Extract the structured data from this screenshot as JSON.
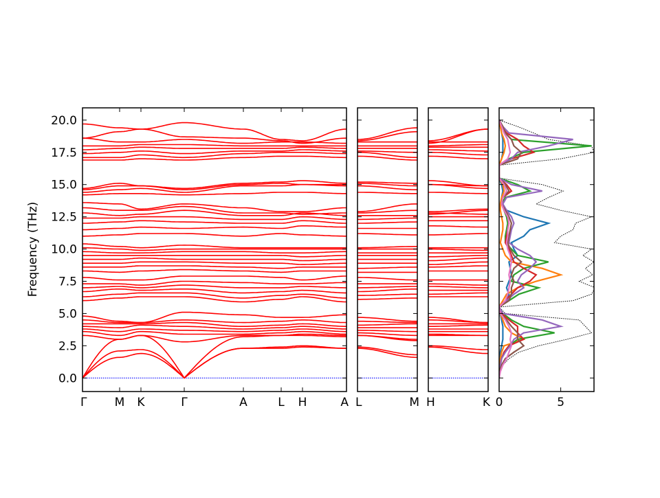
{
  "chart_data": {
    "type": "line",
    "title": "",
    "ylabel": "Frequency (THz)",
    "ylim": [
      -1.05,
      20.95
    ],
    "yticks": [
      "0.0",
      "2.5",
      "5.0",
      "7.5",
      "10.0",
      "12.5",
      "15.0",
      "17.5",
      "20.0"
    ],
    "ytick_values": [
      0,
      2.5,
      5,
      7.5,
      10,
      12.5,
      15,
      17.5,
      20
    ],
    "band_color": "#ff0000",
    "zero_line_color": "#0000ff",
    "kpoint_labels": [
      "Γ",
      "M",
      "K",
      "Γ",
      "A",
      "L",
      "H",
      "A",
      "L",
      "M",
      "H",
      "K"
    ],
    "panels": [
      {
        "nodes": [
          0,
          1,
          2,
          3,
          4,
          5,
          6,
          7
        ],
        "distances": [
          0,
          0.54,
          0.85,
          1.48,
          2.34,
          2.89,
          3.2,
          3.84
        ]
      },
      {
        "nodes": [
          8,
          9
        ],
        "distances": [
          0,
          1
        ]
      },
      {
        "nodes": [
          10,
          11
        ],
        "distances": [
          0,
          1
        ]
      }
    ],
    "bands": [
      [
        0,
        1.6,
        1.9,
        0,
        2.3,
        2.3,
        2.4,
        2.3,
        2.3,
        1.6,
        2.4,
        1.9
      ],
      [
        0,
        2.1,
        2.2,
        0,
        2.3,
        2.4,
        2.5,
        2.3,
        2.4,
        1.8,
        2.5,
        2.2
      ],
      [
        0,
        3.0,
        3.3,
        0,
        3.2,
        3.3,
        3.3,
        3.2,
        3.3,
        2.9,
        3.3,
        3.3
      ],
      [
        3.3,
        3.0,
        3.3,
        2.8,
        3.3,
        3.3,
        3.4,
        3.3,
        3.3,
        3.0,
        3.4,
        3.3
      ],
      [
        3.6,
        3.3,
        3.6,
        3.4,
        3.4,
        3.5,
        3.6,
        3.4,
        3.5,
        3.3,
        3.6,
        3.6
      ],
      [
        3.8,
        3.6,
        3.8,
        3.7,
        3.6,
        3.7,
        3.8,
        3.6,
        3.7,
        3.6,
        3.8,
        3.8
      ],
      [
        4.0,
        3.9,
        4.1,
        4.0,
        3.8,
        3.9,
        4.0,
        3.8,
        3.9,
        3.9,
        4.0,
        4.1
      ],
      [
        4.2,
        4.2,
        4.2,
        4.3,
        4.0,
        4.1,
        4.2,
        4.0,
        4.1,
        4.2,
        4.2,
        4.2
      ],
      [
        4.5,
        4.3,
        4.3,
        4.5,
        4.3,
        4.4,
        4.5,
        4.3,
        4.4,
        4.3,
        4.5,
        4.3
      ],
      [
        4.8,
        4.4,
        4.3,
        5.1,
        4.9,
        4.7,
        4.7,
        4.9,
        4.7,
        4.4,
        4.7,
        4.3
      ],
      [
        6.0,
        6.2,
        6.3,
        6.3,
        5.9,
        6.1,
        6.3,
        5.9,
        6.1,
        6.2,
        6.3,
        6.3
      ],
      [
        6.3,
        6.5,
        6.6,
        6.6,
        6.2,
        6.4,
        6.5,
        6.2,
        6.4,
        6.5,
        6.5,
        6.6
      ],
      [
        6.7,
        6.9,
        6.8,
        6.9,
        6.6,
        6.7,
        6.8,
        6.6,
        6.7,
        6.9,
        6.8,
        6.8
      ],
      [
        7.0,
        7.1,
        7.0,
        7.2,
        7.0,
        7.0,
        7.1,
        7.0,
        7.0,
        7.1,
        7.1,
        7.0
      ],
      [
        7.3,
        7.3,
        7.2,
        7.5,
        7.4,
        7.3,
        7.3,
        7.4,
        7.3,
        7.3,
        7.3,
        7.2
      ],
      [
        7.8,
        7.6,
        7.6,
        7.9,
        7.9,
        7.8,
        7.6,
        7.9,
        7.8,
        7.6,
        7.6,
        7.6
      ],
      [
        8.3,
        8.2,
        8.3,
        8.4,
        8.3,
        8.2,
        8.3,
        8.3,
        8.2,
        8.2,
        8.3,
        8.3
      ],
      [
        8.6,
        8.6,
        8.7,
        8.7,
        8.6,
        8.5,
        8.6,
        8.6,
        8.5,
        8.6,
        8.6,
        8.7
      ],
      [
        8.9,
        8.9,
        9.0,
        9.0,
        8.9,
        8.9,
        8.8,
        8.9,
        8.9,
        8.9,
        8.8,
        9.0
      ],
      [
        9.2,
        9.2,
        9.3,
        9.2,
        9.2,
        9.2,
        9.1,
        9.2,
        9.2,
        9.2,
        9.1,
        9.3
      ],
      [
        9.5,
        9.5,
        9.5,
        9.5,
        9.5,
        9.5,
        9.4,
        9.5,
        9.5,
        9.5,
        9.4,
        9.5
      ],
      [
        9.8,
        9.7,
        9.7,
        9.8,
        9.8,
        9.7,
        9.7,
        9.8,
        9.7,
        9.7,
        9.7,
        9.7
      ],
      [
        10.1,
        10.0,
        9.9,
        10.0,
        10.0,
        10.0,
        10.0,
        10.0,
        10.0,
        10.0,
        10.0,
        9.9
      ],
      [
        10.4,
        10.2,
        10.1,
        10.3,
        10.1,
        10.1,
        10.1,
        10.1,
        10.1,
        10.2,
        10.1,
        10.1
      ],
      [
        11.0,
        11.1,
        11.2,
        11.2,
        11.0,
        11.2,
        11.1,
        11.0,
        11.2,
        11.1,
        11.1,
        11.2
      ],
      [
        11.5,
        11.6,
        11.7,
        11.6,
        11.7,
        11.6,
        11.8,
        11.7,
        11.6,
        11.6,
        11.8,
        11.7
      ],
      [
        12.0,
        12.1,
        12.2,
        12.1,
        12.0,
        12.0,
        12.2,
        12.0,
        12.0,
        12.1,
        12.2,
        12.2
      ],
      [
        12.4,
        12.4,
        12.5,
        12.5,
        12.3,
        12.3,
        12.5,
        12.3,
        12.3,
        12.4,
        12.5,
        12.5
      ],
      [
        12.8,
        12.6,
        12.7,
        13.0,
        12.6,
        12.6,
        12.8,
        12.6,
        12.6,
        12.6,
        12.8,
        12.7
      ],
      [
        13.2,
        13.0,
        13.0,
        13.3,
        12.8,
        12.8,
        12.7,
        12.8,
        12.8,
        13.0,
        12.7,
        13.0
      ],
      [
        13.6,
        13.5,
        13.1,
        13.5,
        13.2,
        12.9,
        12.9,
        13.2,
        12.9,
        13.5,
        12.9,
        13.1
      ],
      [
        14.2,
        14.3,
        14.3,
        14.2,
        14.3,
        14.4,
        14.4,
        14.3,
        14.4,
        14.3,
        14.4,
        14.3
      ],
      [
        14.4,
        14.6,
        14.7,
        14.4,
        14.9,
        14.9,
        15.0,
        14.9,
        14.9,
        14.6,
        15.0,
        14.7
      ],
      [
        14.6,
        14.9,
        14.9,
        14.6,
        15.0,
        15.1,
        15.0,
        15.0,
        15.1,
        14.9,
        15.0,
        14.9
      ],
      [
        14.7,
        15.1,
        14.9,
        14.7,
        15.1,
        15.2,
        15.3,
        15.1,
        15.2,
        15.1,
        15.3,
        14.9
      ],
      [
        16.9,
        16.9,
        17.0,
        16.9,
        17.1,
        17.2,
        17.2,
        17.1,
        17.2,
        16.9,
        17.2,
        17.0
      ],
      [
        17.1,
        17.1,
        17.3,
        17.1,
        17.4,
        17.5,
        17.5,
        17.4,
        17.5,
        17.1,
        17.5,
        17.3
      ],
      [
        17.4,
        17.5,
        17.6,
        17.4,
        17.6,
        17.6,
        17.7,
        17.6,
        17.6,
        17.5,
        17.7,
        17.6
      ],
      [
        17.7,
        17.8,
        17.9,
        17.8,
        17.8,
        17.8,
        17.9,
        17.8,
        17.8,
        17.8,
        17.9,
        17.9
      ],
      [
        18.0,
        18.0,
        18.1,
        18.1,
        18.0,
        18.0,
        18.0,
        18.0,
        18.0,
        18.0,
        18.0,
        18.1
      ],
      [
        18.6,
        18.3,
        18.3,
        18.5,
        18.2,
        18.3,
        18.3,
        18.2,
        18.3,
        18.3,
        18.3,
        18.3
      ],
      [
        18.6,
        19.1,
        19.3,
        18.7,
        18.6,
        18.4,
        18.2,
        18.6,
        18.4,
        19.1,
        18.2,
        19.3
      ],
      [
        19.7,
        19.4,
        19.3,
        19.8,
        19.3,
        18.5,
        18.4,
        19.3,
        18.5,
        19.4,
        18.4,
        19.3
      ]
    ],
    "dos": {
      "xlim": [
        0,
        7.7
      ],
      "xticks": [
        "0",
        "5"
      ],
      "xtick_values": [
        0,
        5
      ],
      "freq_step": 0.5,
      "total": {
        "color": "#000000",
        "values": [
          0,
          0.1,
          0.3,
          0.8,
          1.6,
          3.2,
          5.5,
          7.5,
          7.0,
          6.5,
          0.5,
          0,
          6.0,
          7.5,
          7.8,
          6.5,
          7.6,
          7.0,
          7.7,
          6.8,
          7.5,
          4.5,
          5.0,
          6.0,
          6.2,
          7.5,
          5.0,
          3.0,
          4.0,
          5.2,
          3.5,
          0,
          0,
          0,
          5.0,
          7.7,
          7.5,
          4.0,
          2.8,
          1.5,
          0
        ]
      },
      "partials": [
        {
          "color": "#1f77b4",
          "values": [
            0,
            0,
            0,
            0.1,
            0.1,
            0.2,
            0.3,
            0.3,
            0.3,
            0.2,
            0.1,
            0,
            0.6,
            0.8,
            0.6,
            0.8,
            1.0,
            0.9,
            0.8,
            1.5,
            1.2,
            1.0,
            2.0,
            2.5,
            4.0,
            2.0,
            0.6,
            0.2,
            0.2,
            0.3,
            0.2,
            0,
            0,
            0,
            0.2,
            0.3,
            0.3,
            0.3,
            0.2,
            0.1,
            0
          ]
        },
        {
          "color": "#ff7f0e",
          "values": [
            0,
            0,
            0,
            0.1,
            0.2,
            0.4,
            2.0,
            1.0,
            0.5,
            0.3,
            0.1,
            0,
            0.3,
            0.6,
            1.5,
            3.0,
            5.0,
            3.5,
            1.0,
            0.5,
            0.3,
            0.1,
            0.2,
            0.3,
            0.3,
            0.2,
            0.1,
            0.1,
            0.2,
            0.4,
            0.3,
            0,
            0,
            0,
            0.2,
            0.4,
            0.5,
            0.4,
            0.2,
            0.1,
            0
          ]
        },
        {
          "color": "#2ca02c",
          "values": [
            0,
            0,
            0.1,
            0.2,
            0.4,
            0.8,
            1.5,
            4.5,
            2.0,
            1.0,
            0.3,
            0,
            0.8,
            1.6,
            3.2,
            1.0,
            1.2,
            2.0,
            4.0,
            1.5,
            1.0,
            0.5,
            0.5,
            0.6,
            0.7,
            0.6,
            0.4,
            0.2,
            0.5,
            2.5,
            1.5,
            0,
            0,
            0,
            0.8,
            2.0,
            7.5,
            1.0,
            0.5,
            0.3,
            0
          ]
        },
        {
          "color": "#d62728",
          "values": [
            0,
            0,
            0.1,
            0.2,
            0.4,
            0.8,
            2.0,
            1.5,
            1.5,
            0.8,
            0.2,
            0,
            0.5,
            1.0,
            1.5,
            2.5,
            3.0,
            2.0,
            1.2,
            1.0,
            0.8,
            0.5,
            0.6,
            0.7,
            0.8,
            0.7,
            0.4,
            0.2,
            0.3,
            1.0,
            0.6,
            0,
            0,
            0,
            1.0,
            2.8,
            2.0,
            1.5,
            0.6,
            0.2,
            0
          ]
        },
        {
          "color": "#9467bd",
          "values": [
            0,
            0,
            0.1,
            0.2,
            0.5,
            0.9,
            1.2,
            2.0,
            5.0,
            3.5,
            0.3,
            0,
            0.6,
            1.2,
            2.0,
            1.5,
            1.8,
            2.5,
            3.0,
            2.5,
            1.5,
            0.8,
            0.9,
            1.0,
            1.2,
            1.0,
            0.6,
            0.3,
            0.6,
            3.5,
            1.0,
            0,
            0,
            0,
            1.0,
            1.5,
            4.0,
            6.0,
            0.8,
            0.3,
            0
          ]
        },
        {
          "color": "#8c564b",
          "values": [
            0,
            0,
            0.2,
            0.5,
            1.2,
            2.0,
            1.5,
            1.5,
            1.0,
            0.6,
            0.1,
            0,
            0.8,
            1.0,
            1.0,
            1.2,
            1.0,
            1.2,
            1.8,
            1.2,
            0.9,
            0.7,
            0.8,
            0.9,
            1.0,
            0.8,
            0.5,
            0.2,
            0.3,
            0.8,
            0.5,
            0,
            0,
            0,
            1.5,
            1.8,
            1.2,
            1.0,
            0.5,
            0.3,
            0
          ]
        },
        {
          "color": "#e377c2",
          "values": [
            0,
            0.1,
            0.3,
            0.6,
            0.8,
            1.0,
            0.9,
            1.0,
            0.8,
            0.5,
            0.1,
            0,
            0.5,
            0.7,
            0.8,
            0.9,
            0.8,
            0.9,
            1.0,
            0.9,
            0.7,
            0.6,
            0.7,
            0.7,
            0.8,
            0.7,
            0.4,
            0.2,
            0.3,
            0.6,
            0.4,
            0,
            0,
            0,
            0.7,
            0.9,
            0.8,
            0.7,
            0.4,
            0.2,
            0
          ]
        }
      ]
    }
  }
}
